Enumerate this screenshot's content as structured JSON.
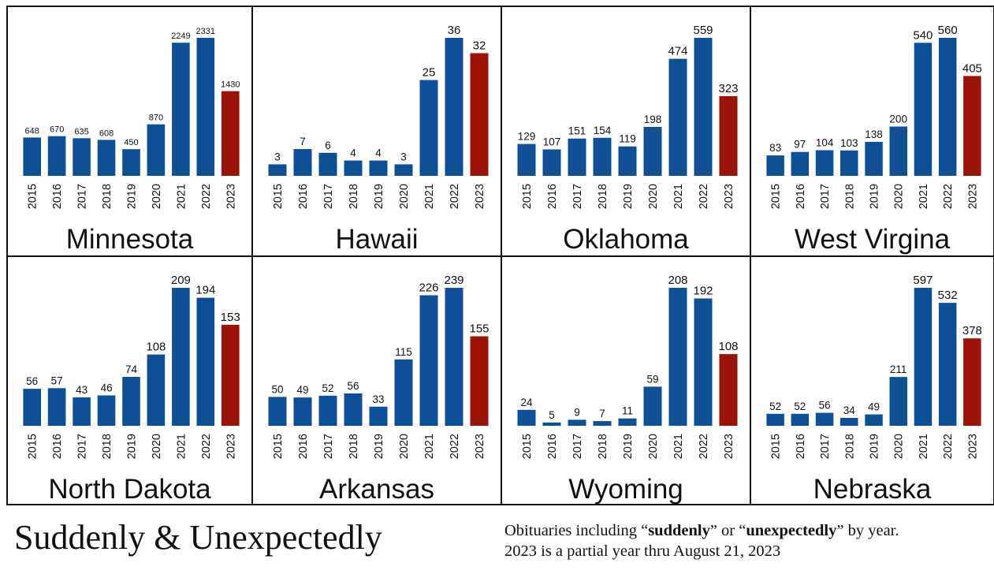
{
  "chart_data": [
    {
      "type": "bar",
      "title": "Minnesota",
      "categories": [
        "2015",
        "2016",
        "2017",
        "2018",
        "2019",
        "2020",
        "2021",
        "2022",
        "2023"
      ],
      "values": [
        648,
        670,
        635,
        608,
        450,
        870,
        2249,
        2331,
        1430
      ],
      "highlight_last_color": "#9b1208",
      "bar_color": "#0f4f96"
    },
    {
      "type": "bar",
      "title": "Hawaii",
      "categories": [
        "2015",
        "2016",
        "2017",
        "2018",
        "2019",
        "2020",
        "2021",
        "2022",
        "2023"
      ],
      "values": [
        3,
        7,
        6,
        4,
        4,
        3,
        25,
        36,
        32
      ],
      "highlight_last_color": "#9b1208",
      "bar_color": "#0f4f96"
    },
    {
      "type": "bar",
      "title": "Oklahoma",
      "categories": [
        "2015",
        "2016",
        "2017",
        "2018",
        "2019",
        "2020",
        "2021",
        "2022",
        "2023"
      ],
      "values": [
        129,
        107,
        151,
        154,
        119,
        198,
        474,
        559,
        323
      ],
      "highlight_last_color": "#9b1208",
      "bar_color": "#0f4f96"
    },
    {
      "type": "bar",
      "title": "West Virgina",
      "categories": [
        "2015",
        "2016",
        "2017",
        "2018",
        "2019",
        "2020",
        "2021",
        "2022",
        "2023"
      ],
      "values": [
        83,
        97,
        104,
        103,
        138,
        200,
        540,
        560,
        405
      ],
      "highlight_last_color": "#9b1208",
      "bar_color": "#0f4f96"
    },
    {
      "type": "bar",
      "title": "North Dakota",
      "categories": [
        "2015",
        "2016",
        "2017",
        "2018",
        "2019",
        "2020",
        "2021",
        "2022",
        "2023"
      ],
      "values": [
        56,
        57,
        43,
        46,
        74,
        108,
        209,
        194,
        153
      ],
      "highlight_last_color": "#9b1208",
      "bar_color": "#0f4f96"
    },
    {
      "type": "bar",
      "title": "Arkansas",
      "categories": [
        "2015",
        "2016",
        "2017",
        "2018",
        "2019",
        "2020",
        "2021",
        "2022",
        "2023"
      ],
      "values": [
        50,
        49,
        52,
        56,
        33,
        115,
        226,
        239,
        155
      ],
      "highlight_last_color": "#9b1208",
      "bar_color": "#0f4f96"
    },
    {
      "type": "bar",
      "title": "Wyoming",
      "categories": [
        "2015",
        "2016",
        "2017",
        "2018",
        "2019",
        "2020",
        "2021",
        "2022",
        "2023"
      ],
      "values": [
        24,
        5,
        9,
        7,
        11,
        59,
        208,
        192,
        108
      ],
      "highlight_last_color": "#9b1208",
      "bar_color": "#0f4f96"
    },
    {
      "type": "bar",
      "title": "Nebraska",
      "categories": [
        "2015",
        "2016",
        "2017",
        "2018",
        "2019",
        "2020",
        "2021",
        "2022",
        "2023"
      ],
      "values": [
        52,
        52,
        56,
        34,
        49,
        211,
        597,
        532,
        378
      ],
      "highlight_last_color": "#9b1208",
      "bar_color": "#0f4f96"
    }
  ],
  "footer": {
    "title": "Suddenly & Unexpectedly",
    "note_prefix": "Obituaries including “",
    "note_bold_1": "suddenly",
    "note_mid": "” or “",
    "note_bold_2": "unexpectedly",
    "note_suffix": "” by year.",
    "note_line2": "2023 is a partial year thru August 21, 2023"
  }
}
